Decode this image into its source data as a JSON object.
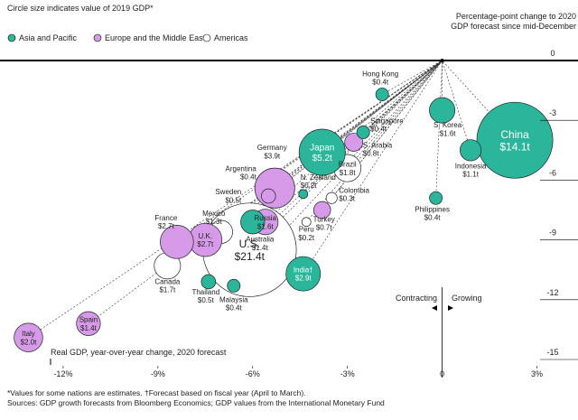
{
  "chart_data": {
    "type": "bubble",
    "title": "Circle size indicates value of 2019 GDP*",
    "y_label": [
      "Percentage-point change to 2020",
      "GDP forecast since mid-December"
    ],
    "x_label": "Real GDP, year-over-year change, 2020 forecast",
    "annotations": [
      "Contracting",
      "Growing"
    ],
    "footnotes": [
      "*Values for some nations are estimates. †Forecast based on fiscal year (April to March).",
      "Sources: GDP growth forecasts from Bloomberg Economics; GDP values from the International Monetary Fund"
    ],
    "xlim": [
      -14,
      4.3
    ],
    "ylim": [
      -15,
      0
    ],
    "xticks": [
      {
        "value": -12,
        "label": "-12%"
      },
      {
        "value": -9,
        "label": "-9%"
      },
      {
        "value": -6,
        "label": "-6%"
      },
      {
        "value": -3,
        "label": "-3%"
      },
      0,
      {
        "value": 3,
        "label": "3%"
      }
    ],
    "yticks": [
      0,
      -3,
      -6,
      -9,
      -12,
      -15
    ],
    "series": [
      {
        "name": "Americas",
        "color": "#ffffff",
        "labels": [
          "U.S.",
          "Canada",
          "Mexico",
          "Brazil",
          "Argentina",
          "Colombia",
          "Peru"
        ],
        "x": [
          -6.1,
          -8.7,
          -7.0,
          -3.0,
          -5.6,
          -3.5,
          -4.3
        ],
        "values": [
          -9.5,
          -10.3,
          -8.6,
          -5.4,
          -6.0,
          -6.9,
          -8.1
        ],
        "sizes": [
          21.4,
          1.7,
          1.3,
          1.8,
          0.4,
          0.3,
          0.2
        ],
        "value_labels": [
          "$21.4t",
          "$1.7t",
          "$1.3t",
          "$1.8t",
          "$0.4t",
          "$0.3t",
          "$0.2t"
        ]
      },
      {
        "name": "Europe and the Middle East",
        "color": "#d69ae8",
        "labels": [
          "S. Arabia",
          "Turkey",
          "Germany",
          "Sweden",
          "Russia",
          "U.K.",
          "France",
          "Italy",
          "Spain"
        ],
        "x": [
          -2.8,
          -3.8,
          -5.3,
          -5.5,
          -5.6,
          -7.5,
          -8.4,
          -13.1,
          -11.2
        ],
        "values": [
          -4.1,
          -7.5,
          -6.4,
          -6.8,
          -8.1,
          -9.0,
          -9.1,
          -13.9,
          -13.2
        ],
        "sizes": [
          0.8,
          0.7,
          3.9,
          0.5,
          1.6,
          2.7,
          2.7,
          2.0,
          1.4
        ],
        "value_labels": [
          "$0.8t",
          "$0.7t",
          "$3.9t",
          "$0.5t",
          "$1.6t",
          "$2.7t",
          "$2.7t",
          "$2.0t",
          "$1.4t"
        ]
      },
      {
        "name": "Asia and Pacific",
        "color": "#2bb69b",
        "labels": [
          "China",
          "Indonesia",
          "S. Korea",
          "Philippines",
          "Hong Kong",
          "Singapore",
          "Japan",
          "N. Zealand",
          "India†",
          "Australia",
          "Thailand",
          "Malaysia"
        ],
        "x": [
          2.3,
          0.9,
          0.0,
          -0.2,
          -1.9,
          -2.5,
          -3.8,
          -4.4,
          -4.4,
          -6.0,
          -7.4,
          -6.6
        ],
        "values": [
          -4.0,
          -4.5,
          -2.5,
          -6.9,
          -1.7,
          -3.6,
          -4.6,
          -6.7,
          -10.7,
          -8.1,
          -11.1,
          -11.3
        ],
        "sizes": [
          14.1,
          1.1,
          1.6,
          0.4,
          0.4,
          0.4,
          5.2,
          0.2,
          2.9,
          1.4,
          0.5,
          0.4
        ],
        "value_labels": [
          "$14.1t",
          "$1.1t",
          "$1.6t",
          "$0.4t",
          "$0.4t",
          "$0.4t",
          "$5.2t",
          "$0.2t",
          "$2.9t",
          "$1.4t",
          "$0.5t",
          "$0.4t"
        ]
      }
    ]
  }
}
